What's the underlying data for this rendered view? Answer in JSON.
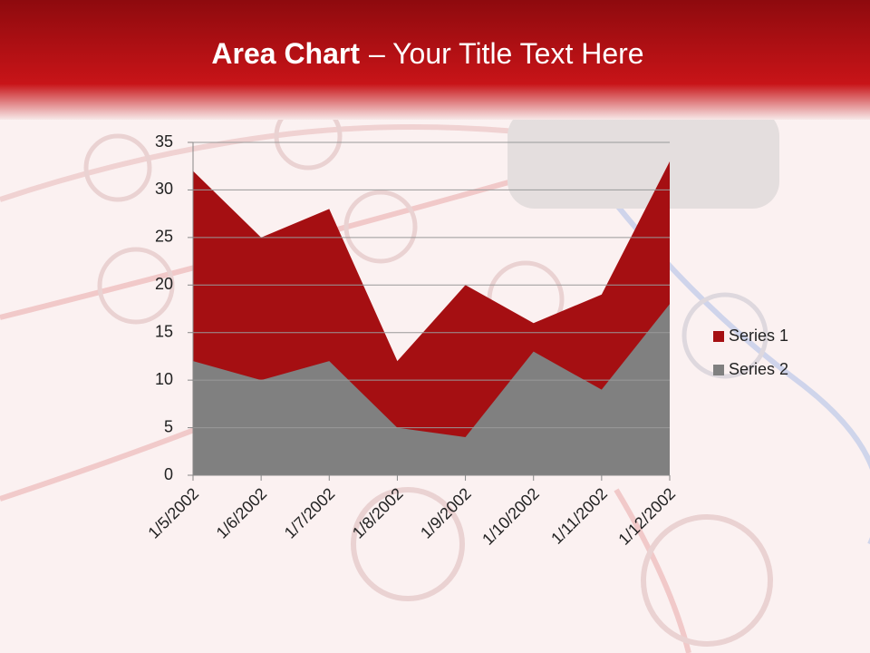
{
  "chart_data": {
    "type": "area",
    "title_parts": [
      "Area Chart",
      "– Your Title Text Here"
    ],
    "categories": [
      "1/5/2002",
      "1/6/2002",
      "1/7/2002",
      "1/8/2002",
      "1/9/2002",
      "1/10/2002",
      "1/11/2002",
      "1/12/2002"
    ],
    "series": [
      {
        "name": "Series 1",
        "color": "#a50f12",
        "values": [
          32,
          25,
          28,
          12,
          20,
          16,
          19,
          33
        ]
      },
      {
        "name": "Series 2",
        "color": "#808080",
        "values": [
          12,
          10,
          12,
          5,
          4,
          13,
          9,
          18
        ]
      }
    ],
    "ylim": [
      0,
      35
    ],
    "yticks": [
      0,
      5,
      10,
      15,
      20,
      25,
      30,
      35
    ],
    "grid": true,
    "legend": "right"
  }
}
